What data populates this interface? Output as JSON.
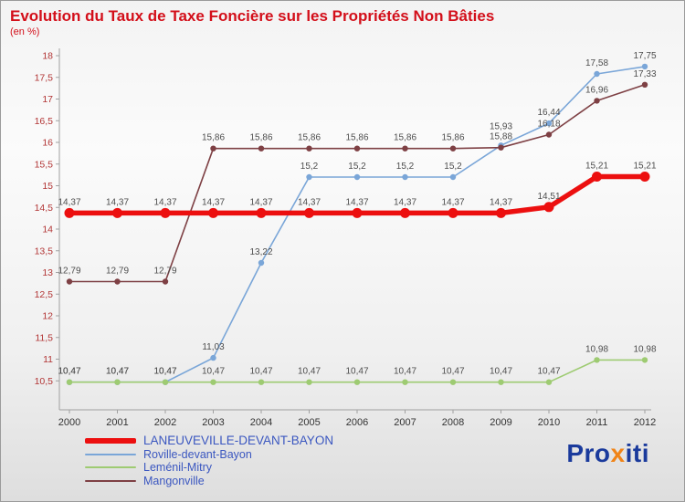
{
  "colors": {
    "title": "#d30f1a",
    "axis": "#a0a0a0",
    "y_labels": "#b23535",
    "x_labels": "#333333",
    "data_labels": "#4d4d4d",
    "legend_text": "#3b57c0"
  },
  "chart_data": {
    "type": "line",
    "title": "Evolution du Taux de Taxe Foncière sur les Propriétés Non Bâties",
    "subtitle": "(en %)",
    "x_labels": [
      "2000",
      "2001",
      "2002",
      "2003",
      "2004",
      "2005",
      "2006",
      "2007",
      "2008",
      "2009",
      "2010",
      "2011",
      "2012"
    ],
    "y_tick_labels": [
      "10,5",
      "11",
      "11,5",
      "12",
      "12,5",
      "13",
      "13,5",
      "14",
      "14,5",
      "15",
      "15,5",
      "16",
      "16,5",
      "17",
      "17,5",
      "18"
    ],
    "ylim": [
      10,
      18
    ],
    "grid": false,
    "legend_position": "bottom-left",
    "series": [
      {
        "name": "LANEUVEVILLE-DEVANT-BAYON",
        "color": "#ec0f0f",
        "line_width": 5.5,
        "marker_radius": 5.5,
        "values": [
          14.37,
          14.37,
          14.37,
          14.37,
          14.37,
          14.37,
          14.37,
          14.37,
          14.37,
          14.37,
          14.51,
          15.21,
          15.21
        ],
        "labels": [
          "14,37",
          "14,37",
          "14,37",
          "14,37",
          "14,37",
          "14,37",
          "14,37",
          "14,37",
          "14,37",
          "14,37",
          "14,51",
          "15,21",
          "15,21"
        ]
      },
      {
        "name": "Roville-devant-Bayon",
        "color": "#7aa6d8",
        "line_width": 1.6,
        "marker_radius": 3.2,
        "values": [
          10.47,
          10.47,
          10.47,
          11.03,
          13.22,
          15.2,
          15.2,
          15.2,
          15.2,
          15.93,
          16.44,
          17.58,
          17.75
        ],
        "labels": [
          "10,47",
          "10,47",
          "10,47",
          "11,03",
          "13,22",
          "15,2",
          "15,2",
          "15,2",
          "15,2",
          "15,93",
          "16,44",
          "17,58",
          "17,75"
        ]
      },
      {
        "name": "Leménil-Mitry",
        "color": "#9ecb72",
        "line_width": 1.6,
        "marker_radius": 3.2,
        "values": [
          10.47,
          10.47,
          10.47,
          10.47,
          10.47,
          10.47,
          10.47,
          10.47,
          10.47,
          10.47,
          10.47,
          10.98,
          10.98
        ],
        "labels": [
          "10,47",
          "10,47",
          "10,47",
          "10,47",
          "10,47",
          "10,47",
          "10,47",
          "10,47",
          "10,47",
          "10,47",
          "10,47",
          "10,98",
          "10,98"
        ]
      },
      {
        "name": "Mangonville",
        "color": "#7e4044",
        "line_width": 1.6,
        "marker_radius": 3.2,
        "values": [
          12.79,
          12.79,
          12.79,
          15.86,
          15.86,
          15.86,
          15.86,
          15.86,
          15.86,
          15.88,
          16.18,
          16.96,
          17.33
        ],
        "labels": [
          "12,79",
          "12,79",
          "12,79",
          "15,86",
          "15,86",
          "15,86",
          "15,86",
          "15,86",
          "15,86",
          "15,88",
          "16,18",
          "16,96",
          "17,33"
        ]
      }
    ]
  },
  "logo": {
    "parts": [
      {
        "text": "Pro",
        "color": "#1a3a9c"
      },
      {
        "text": "x",
        "color": "#f08418"
      },
      {
        "text": "iti",
        "color": "#1a3a9c"
      }
    ]
  }
}
